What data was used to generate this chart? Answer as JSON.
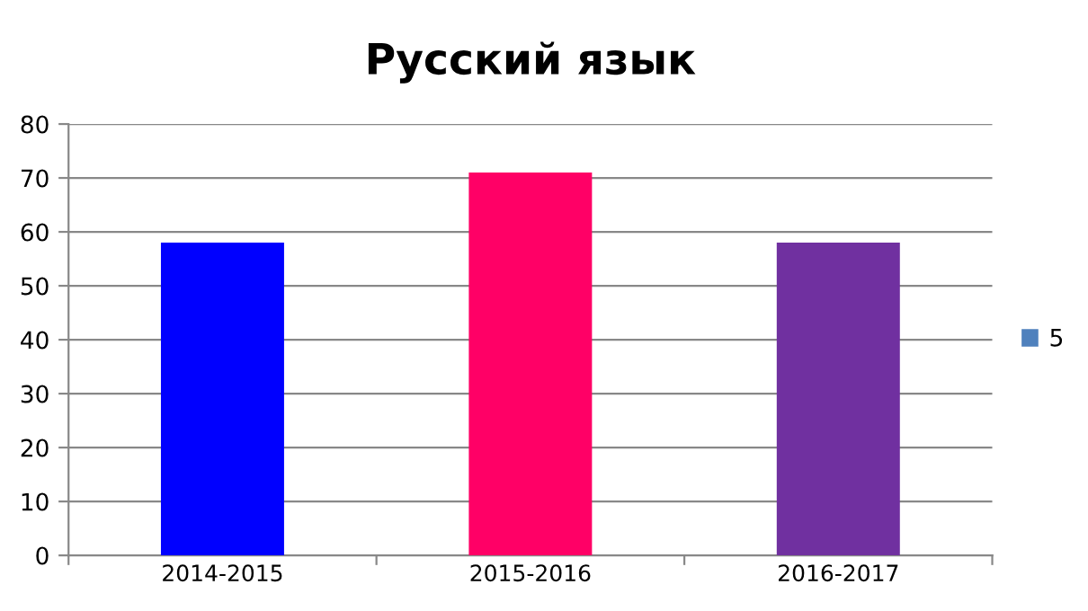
{
  "chart_data": {
    "type": "bar",
    "title": "Русский язык",
    "categories": [
      "2014-2015",
      "2015-2016",
      "2016-2017"
    ],
    "series": [
      {
        "name": "5",
        "color": "#4f81bd",
        "colors": [
          "#0000ff",
          "#ff0066",
          "#7030a0"
        ],
        "values": [
          58,
          71,
          58
        ]
      }
    ],
    "ylim": [
      0,
      80
    ],
    "yticks": [
      0,
      10,
      20,
      30,
      40,
      50,
      60,
      70,
      80
    ],
    "grid": "y",
    "legend": "right"
  }
}
